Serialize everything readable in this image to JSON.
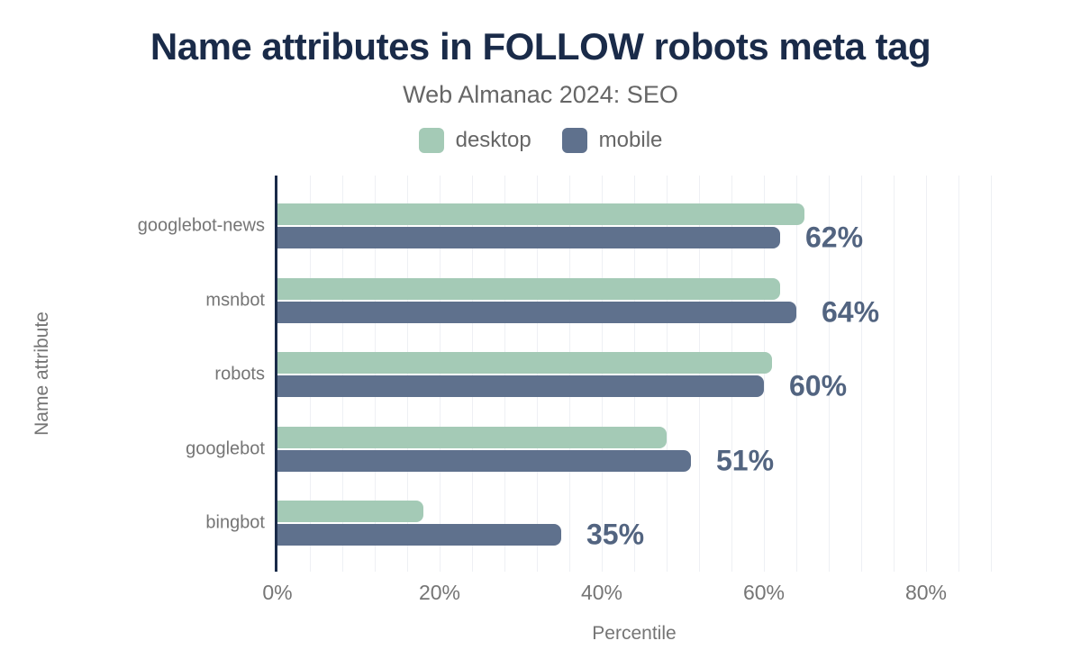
{
  "header": {
    "title": "Name attributes in FOLLOW robots meta tag",
    "subtitle": "Web Almanac 2024: SEO"
  },
  "legend": [
    {
      "label": "desktop",
      "color": "#a4cab6"
    },
    {
      "label": "mobile",
      "color": "#5f718d"
    }
  ],
  "axes": {
    "x_title": "Percentile",
    "y_title": "Name attribute"
  },
  "chart_data": {
    "type": "bar",
    "orientation": "horizontal",
    "title": "Name attributes in FOLLOW robots meta tag",
    "subtitle": "Web Almanac 2024: SEO",
    "xlabel": "Percentile",
    "ylabel": "Name attribute",
    "categories": [
      "googlebot-news",
      "msnbot",
      "robots",
      "googlebot",
      "bingbot"
    ],
    "series": [
      {
        "name": "desktop",
        "color": "#a4cab6",
        "values": [
          65,
          62,
          61,
          48,
          18
        ]
      },
      {
        "name": "mobile",
        "color": "#5f718d",
        "values": [
          62,
          64,
          60,
          51,
          35
        ]
      }
    ],
    "data_labels": {
      "series": "mobile",
      "labels": [
        "62%",
        "64%",
        "60%",
        "51%",
        "35%"
      ]
    },
    "x_ticks": [
      0,
      20,
      40,
      60,
      80
    ],
    "x_tick_labels": [
      "0%",
      "20%",
      "40%",
      "60%",
      "80%"
    ],
    "xlim": [
      0,
      88
    ],
    "grid": {
      "vertical_interval_pct": 4
    },
    "legend_position": "top"
  },
  "colors": {
    "background": "#ffffff",
    "title": "#1a2b49",
    "subtitle": "#666666",
    "axis_line": "#1a2b49",
    "gridline": "#eef0f4",
    "tick_label": "#757575",
    "category_label": "#757575",
    "axis_title": "#757575",
    "data_label": "#526480"
  }
}
